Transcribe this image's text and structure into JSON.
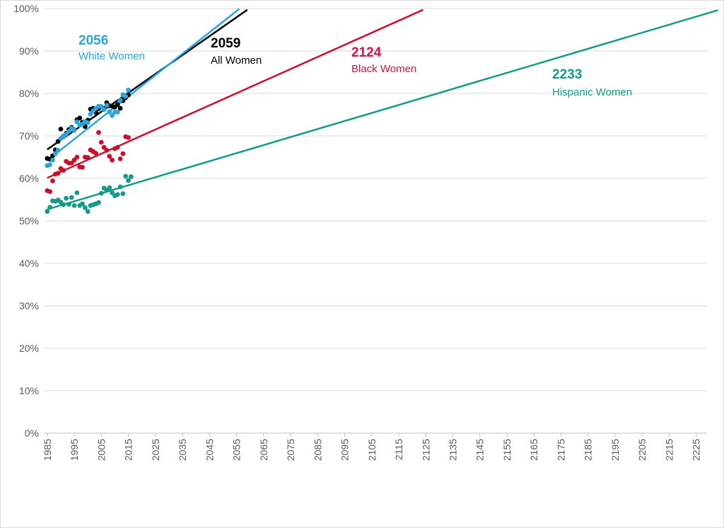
{
  "chart_data": {
    "type": "scatter",
    "title": "",
    "xlabel": "",
    "ylabel": "",
    "xlim": [
      1984,
      2229
    ],
    "ylim": [
      0,
      100
    ],
    "x_ticks": [
      1985,
      1995,
      2005,
      2015,
      2025,
      2035,
      2045,
      2055,
      2065,
      2075,
      2085,
      2095,
      2105,
      2115,
      2125,
      2135,
      2145,
      2155,
      2165,
      2175,
      2185,
      2195,
      2205,
      2215,
      2225
    ],
    "y_ticks": [
      0,
      10,
      20,
      30,
      40,
      50,
      60,
      70,
      80,
      90,
      100
    ],
    "y_tick_labels": [
      "0%",
      "10%",
      "20%",
      "30%",
      "40%",
      "50%",
      "60%",
      "70%",
      "80%",
      "90%",
      "100%"
    ],
    "grid": "horizontal",
    "series": [
      {
        "name": "All Women",
        "color": "#000000",
        "points": [
          [
            1985,
            64.7
          ],
          [
            1986,
            64.5
          ],
          [
            1987,
            65.3
          ],
          [
            1988,
            66.7
          ],
          [
            1989,
            68.7
          ],
          [
            1990,
            71.6
          ],
          [
            1991,
            69.9
          ],
          [
            1992,
            70.6
          ],
          [
            1993,
            71.5
          ],
          [
            1994,
            72.0
          ],
          [
            1995,
            71.4
          ],
          [
            1996,
            73.8
          ],
          [
            1997,
            74.2
          ],
          [
            1998,
            73.2
          ],
          [
            1999,
            72.2
          ],
          [
            2000,
            73.7
          ],
          [
            2001,
            76.3
          ],
          [
            2002,
            76.5
          ],
          [
            2003,
            75.5
          ],
          [
            2004,
            76.4
          ],
          [
            2005,
            76.9
          ],
          [
            2006,
            76.5
          ],
          [
            2007,
            77.8
          ],
          [
            2008,
            77.1
          ],
          [
            2009,
            77.0
          ],
          [
            2010,
            76.8
          ],
          [
            2011,
            77.4
          ],
          [
            2012,
            76.5
          ],
          [
            2013,
            78.3
          ],
          [
            2014,
            79.0
          ],
          [
            2015,
            79.6
          ]
        ],
        "trend": [
          [
            1985,
            66.8
          ],
          [
            2059,
            99.7
          ]
        ],
        "annotation_year": "2059",
        "annotation_label": "All Women"
      },
      {
        "name": "White Women",
        "color": "#2aa5dc",
        "points": [
          [
            1985,
            63.0
          ],
          [
            1986,
            63.2
          ],
          [
            1987,
            64.3
          ],
          [
            1988,
            65.8
          ],
          [
            1989,
            66.6
          ],
          [
            1990,
            69.4
          ],
          [
            1991,
            69.8
          ],
          [
            1992,
            70.4
          ],
          [
            1993,
            71.1
          ],
          [
            1994,
            71.8
          ],
          [
            1995,
            71.3
          ],
          [
            1996,
            73.3
          ],
          [
            1997,
            72.5
          ],
          [
            1998,
            72.8
          ],
          [
            1999,
            73.4
          ],
          [
            2000,
            73.1
          ],
          [
            2001,
            75.1
          ],
          [
            2002,
            75.9
          ],
          [
            2003,
            76.5
          ],
          [
            2004,
            77.0
          ],
          [
            2005,
            76.9
          ],
          [
            2006,
            76.2
          ],
          [
            2007,
            77.2
          ],
          [
            2008,
            75.7
          ],
          [
            2009,
            74.8
          ],
          [
            2010,
            75.6
          ],
          [
            2011,
            75.6
          ],
          [
            2012,
            78.4
          ],
          [
            2013,
            79.7
          ],
          [
            2014,
            79.3
          ],
          [
            2015,
            80.8
          ]
        ],
        "trend": [
          [
            1985,
            64.2
          ],
          [
            2056,
            99.9
          ]
        ],
        "annotation_year": "2056",
        "annotation_label": "White Women"
      },
      {
        "name": "Black Women",
        "color": "#c8102e",
        "points": [
          [
            1985,
            57.1
          ],
          [
            1986,
            56.9
          ],
          [
            1987,
            59.4
          ],
          [
            1988,
            61.0
          ],
          [
            1989,
            61.2
          ],
          [
            1990,
            62.3
          ],
          [
            1991,
            61.9
          ],
          [
            1992,
            64.0
          ],
          [
            1993,
            63.6
          ],
          [
            1994,
            63.6
          ],
          [
            1995,
            64.3
          ],
          [
            1996,
            65.0
          ],
          [
            1997,
            62.7
          ],
          [
            1998,
            62.6
          ],
          [
            1999,
            65.0
          ],
          [
            2000,
            64.9
          ],
          [
            2001,
            66.7
          ],
          [
            2002,
            66.3
          ],
          [
            2003,
            65.9
          ],
          [
            2004,
            70.8
          ],
          [
            2005,
            68.5
          ],
          [
            2006,
            67.3
          ],
          [
            2007,
            66.6
          ],
          [
            2008,
            65.2
          ],
          [
            2009,
            64.3
          ],
          [
            2010,
            67.0
          ],
          [
            2011,
            67.3
          ],
          [
            2012,
            64.6
          ],
          [
            2013,
            65.8
          ],
          [
            2014,
            69.8
          ],
          [
            2015,
            69.6
          ]
        ],
        "trend": [
          [
            1985,
            60.1
          ],
          [
            2124,
            99.7
          ]
        ],
        "annotation_year": "2124",
        "annotation_label": "Black Women"
      },
      {
        "name": "Hispanic Women",
        "color": "#15998a",
        "points": [
          [
            1985,
            52.2
          ],
          [
            1986,
            53.2
          ],
          [
            1987,
            54.7
          ],
          [
            1988,
            54.6
          ],
          [
            1989,
            54.9
          ],
          [
            1990,
            54.4
          ],
          [
            1991,
            53.8
          ],
          [
            1992,
            55.3
          ],
          [
            1993,
            53.9
          ],
          [
            1994,
            55.5
          ],
          [
            1995,
            53.6
          ],
          [
            1996,
            56.6
          ],
          [
            1997,
            53.6
          ],
          [
            1998,
            54.0
          ],
          [
            1999,
            53.1
          ],
          [
            2000,
            52.2
          ],
          [
            2001,
            53.6
          ],
          [
            2002,
            53.8
          ],
          [
            2003,
            54.0
          ],
          [
            2004,
            54.3
          ],
          [
            2005,
            56.5
          ],
          [
            2006,
            57.7
          ],
          [
            2007,
            57.2
          ],
          [
            2008,
            57.8
          ],
          [
            2009,
            56.6
          ],
          [
            2010,
            55.9
          ],
          [
            2011,
            56.2
          ],
          [
            2012,
            58.0
          ],
          [
            2013,
            56.4
          ],
          [
            2014,
            60.5
          ],
          [
            2015,
            59.5
          ],
          [
            2016,
            60.4
          ]
        ],
        "trend": [
          [
            1985,
            52.7
          ],
          [
            2233,
            99.6
          ]
        ],
        "annotation_year": "2233",
        "annotation_label": "Hispanic Women"
      }
    ]
  }
}
